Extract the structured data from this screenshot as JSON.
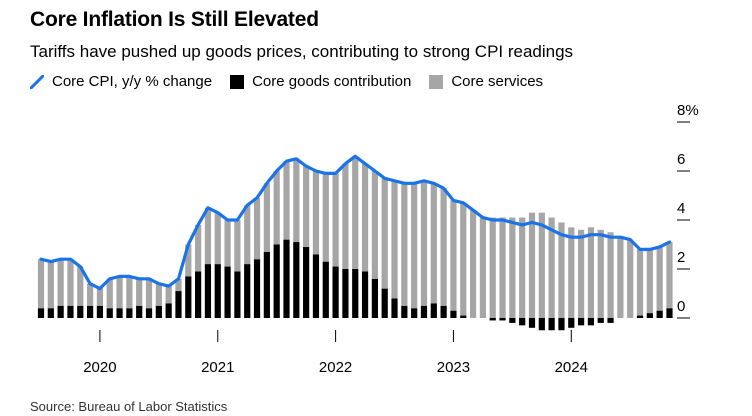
{
  "title": "Core Inflation Is Still Elevated",
  "subtitle": "Tariffs have pushed up goods prices, contributing to strong CPI readings",
  "source": "Source: Bureau of Labor Statistics",
  "colors": {
    "line": "#1a73e8",
    "goods": "#000000",
    "services": "#a6a6a6"
  },
  "legend": [
    {
      "label": "Core CPI, y/y % change",
      "color": "#1a73e8",
      "kind": "line"
    },
    {
      "label": "Core goods contribution",
      "color": "#000000",
      "kind": "box"
    },
    {
      "label": "Core services",
      "color": "#a6a6a6",
      "kind": "box"
    }
  ],
  "chart_data": {
    "type": "bar",
    "x_tick_labels": [
      "2020",
      "2021",
      "2022",
      "2023",
      "2024"
    ],
    "x_tick_month_index": [
      6,
      18,
      30,
      42,
      54
    ],
    "y_tick_labels": [
      "8%",
      "6",
      "4",
      "2",
      "0"
    ],
    "y_ticks": [
      8,
      6,
      4,
      2,
      0
    ],
    "ylim": [
      -1,
      8.5
    ],
    "grid": false,
    "y_axis_position": "right",
    "legend_position": "top",
    "series": [
      {
        "name": "Core CPI, y/y % change",
        "type": "line",
        "values": [
          2.4,
          2.3,
          2.4,
          2.4,
          2.1,
          1.4,
          1.2,
          1.6,
          1.7,
          1.7,
          1.6,
          1.6,
          1.4,
          1.3,
          1.6,
          3.0,
          3.8,
          4.5,
          4.3,
          4.0,
          4.0,
          4.6,
          4.9,
          5.5,
          6.0,
          6.4,
          6.5,
          6.2,
          6.0,
          5.9,
          5.9,
          6.3,
          6.6,
          6.3,
          6.0,
          5.7,
          5.6,
          5.5,
          5.5,
          5.6,
          5.5,
          5.3,
          4.8,
          4.7,
          4.4,
          4.1,
          4.0,
          4.0,
          3.9,
          3.8,
          3.9,
          3.8,
          3.6,
          3.4,
          3.3,
          3.3,
          3.4,
          3.4,
          3.3,
          3.3,
          3.2,
          2.8,
          2.8,
          2.9,
          3.1
        ]
      },
      {
        "name": "Core goods contribution",
        "type": "bar",
        "values": [
          0.4,
          0.4,
          0.5,
          0.5,
          0.5,
          0.5,
          0.5,
          0.4,
          0.4,
          0.4,
          0.5,
          0.4,
          0.5,
          0.6,
          1.1,
          1.7,
          1.9,
          2.2,
          2.2,
          2.1,
          1.9,
          2.2,
          2.4,
          2.7,
          3.0,
          3.2,
          3.1,
          2.9,
          2.6,
          2.3,
          2.1,
          2.0,
          2.0,
          1.9,
          1.6,
          1.2,
          0.8,
          0.5,
          0.4,
          0.5,
          0.6,
          0.5,
          0.3,
          0.1,
          0.0,
          0.0,
          -0.1,
          -0.1,
          -0.2,
          -0.3,
          -0.4,
          -0.5,
          -0.5,
          -0.5,
          -0.4,
          -0.3,
          -0.3,
          -0.2,
          -0.2,
          0.0,
          0.0,
          0.1,
          0.2,
          0.3,
          0.4
        ]
      },
      {
        "name": "Core services",
        "type": "bar",
        "values": [
          2.0,
          1.9,
          1.9,
          1.9,
          1.6,
          0.9,
          0.7,
          1.2,
          1.3,
          1.3,
          1.1,
          1.2,
          0.9,
          0.7,
          0.5,
          1.3,
          1.9,
          2.3,
          2.1,
          1.9,
          2.1,
          2.4,
          2.5,
          2.8,
          3.0,
          3.2,
          3.4,
          3.3,
          3.4,
          3.6,
          3.8,
          4.3,
          4.6,
          4.4,
          4.4,
          4.5,
          4.8,
          5.0,
          5.1,
          5.1,
          4.9,
          4.8,
          4.5,
          4.6,
          4.4,
          4.1,
          4.1,
          4.1,
          4.1,
          4.1,
          4.3,
          4.3,
          4.1,
          3.9,
          3.7,
          3.6,
          3.7,
          3.6,
          3.5,
          3.3,
          3.2,
          2.7,
          2.6,
          2.6,
          2.7
        ]
      }
    ]
  }
}
